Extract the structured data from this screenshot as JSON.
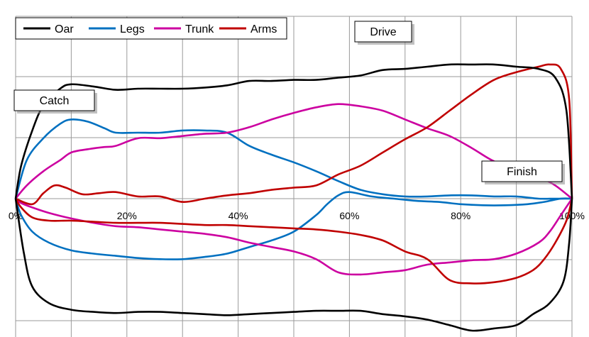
{
  "chart_data": {
    "type": "line",
    "xlim": [
      0,
      100
    ],
    "ylim": [
      -1,
      1
    ],
    "grid": true,
    "legend_position": "top-left",
    "x_tick_labels": [
      "0%",
      "20%",
      "40%",
      "60%",
      "80%",
      "100%"
    ],
    "x_tick_values": [
      0,
      20,
      40,
      60,
      80,
      100
    ],
    "annotations": [
      {
        "text": "Catch",
        "x": 0,
        "y": 0.79
      },
      {
        "text": "Drive",
        "x": 40,
        "y": 1.05
      },
      {
        "text": "Finish",
        "x": 100,
        "y": 0.3
      }
    ],
    "series": [
      {
        "name": "Oar",
        "color": "#000000",
        "drive": [
          [
            0,
            0
          ],
          [
            1,
            0.3
          ],
          [
            3,
            0.62
          ],
          [
            5,
            0.85
          ],
          [
            8,
            1.0
          ],
          [
            10,
            1.04
          ],
          [
            14,
            1.02
          ],
          [
            18,
            0.99
          ],
          [
            22,
            1.0
          ],
          [
            26,
            1.0
          ],
          [
            30,
            1.0
          ],
          [
            34,
            1.01
          ],
          [
            38,
            1.03
          ],
          [
            42,
            1.07
          ],
          [
            46,
            1.07
          ],
          [
            50,
            1.08
          ],
          [
            54,
            1.08
          ],
          [
            58,
            1.1
          ],
          [
            62,
            1.12
          ],
          [
            66,
            1.17
          ],
          [
            70,
            1.18
          ],
          [
            74,
            1.2
          ],
          [
            78,
            1.22
          ],
          [
            82,
            1.22
          ],
          [
            86,
            1.22
          ],
          [
            90,
            1.2
          ],
          [
            94,
            1.18
          ],
          [
            97,
            1.1
          ],
          [
            99,
            0.8
          ],
          [
            100,
            0
          ]
        ],
        "recovery": [
          [
            100,
            0
          ],
          [
            99.5,
            -0.4
          ],
          [
            98.5,
            -0.75
          ],
          [
            96,
            -0.95
          ],
          [
            93,
            -1.05
          ],
          [
            90,
            -1.15
          ],
          [
            86,
            -1.18
          ],
          [
            82,
            -1.2
          ],
          [
            78,
            -1.15
          ],
          [
            74,
            -1.1
          ],
          [
            70,
            -1.07
          ],
          [
            66,
            -1.05
          ],
          [
            62,
            -1.02
          ],
          [
            58,
            -1.02
          ],
          [
            54,
            -1.02
          ],
          [
            50,
            -1.03
          ],
          [
            46,
            -1.04
          ],
          [
            42,
            -1.05
          ],
          [
            38,
            -1.06
          ],
          [
            34,
            -1.05
          ],
          [
            30,
            -1.04
          ],
          [
            26,
            -1.03
          ],
          [
            22,
            -1.03
          ],
          [
            18,
            -1.04
          ],
          [
            14,
            -1.03
          ],
          [
            10,
            -1.01
          ],
          [
            6,
            -0.95
          ],
          [
            3,
            -0.8
          ],
          [
            1.5,
            -0.5
          ],
          [
            0,
            0
          ]
        ]
      },
      {
        "name": "Legs",
        "color": "#0070C0",
        "drive": [
          [
            0,
            0
          ],
          [
            2,
            0.35
          ],
          [
            5,
            0.55
          ],
          [
            8,
            0.68
          ],
          [
            10,
            0.72
          ],
          [
            13,
            0.7
          ],
          [
            16,
            0.64
          ],
          [
            18,
            0.6
          ],
          [
            22,
            0.6
          ],
          [
            26,
            0.6
          ],
          [
            30,
            0.62
          ],
          [
            34,
            0.62
          ],
          [
            38,
            0.6
          ],
          [
            42,
            0.48
          ],
          [
            46,
            0.4
          ],
          [
            50,
            0.33
          ],
          [
            54,
            0.25
          ],
          [
            58,
            0.16
          ],
          [
            62,
            0.08
          ],
          [
            66,
            0.04
          ],
          [
            70,
            0.02
          ],
          [
            74,
            0.02
          ],
          [
            78,
            0.03
          ],
          [
            82,
            0.03
          ],
          [
            86,
            0.02
          ],
          [
            90,
            0.02
          ],
          [
            94,
            0.0
          ],
          [
            97,
            0.0
          ],
          [
            100,
            0.0
          ]
        ],
        "recovery": [
          [
            100,
            0
          ],
          [
            98,
            0.0
          ],
          [
            95,
            -0.03
          ],
          [
            92,
            -0.05
          ],
          [
            88,
            -0.06
          ],
          [
            84,
            -0.06
          ],
          [
            80,
            -0.05
          ],
          [
            76,
            -0.03
          ],
          [
            72,
            -0.02
          ],
          [
            68,
            0.0
          ],
          [
            64,
            0.02
          ],
          [
            60,
            0.06
          ],
          [
            58,
            0.03
          ],
          [
            56,
            -0.05
          ],
          [
            54,
            -0.15
          ],
          [
            50,
            -0.3
          ],
          [
            46,
            -0.38
          ],
          [
            42,
            -0.44
          ],
          [
            38,
            -0.5
          ],
          [
            34,
            -0.53
          ],
          [
            30,
            -0.55
          ],
          [
            26,
            -0.55
          ],
          [
            22,
            -0.54
          ],
          [
            18,
            -0.52
          ],
          [
            14,
            -0.5
          ],
          [
            10,
            -0.47
          ],
          [
            6,
            -0.4
          ],
          [
            3,
            -0.3
          ],
          [
            1,
            -0.15
          ],
          [
            0,
            0
          ]
        ]
      },
      {
        "name": "Trunk",
        "color": "#CC00A0",
        "drive": [
          [
            0,
            0
          ],
          [
            2,
            0.12
          ],
          [
            5,
            0.25
          ],
          [
            8,
            0.35
          ],
          [
            10,
            0.42
          ],
          [
            13,
            0.45
          ],
          [
            16,
            0.47
          ],
          [
            18,
            0.48
          ],
          [
            22,
            0.55
          ],
          [
            26,
            0.55
          ],
          [
            30,
            0.57
          ],
          [
            34,
            0.59
          ],
          [
            38,
            0.6
          ],
          [
            42,
            0.65
          ],
          [
            46,
            0.72
          ],
          [
            50,
            0.78
          ],
          [
            54,
            0.83
          ],
          [
            58,
            0.86
          ],
          [
            62,
            0.84
          ],
          [
            66,
            0.8
          ],
          [
            70,
            0.72
          ],
          [
            74,
            0.64
          ],
          [
            78,
            0.57
          ],
          [
            82,
            0.46
          ],
          [
            86,
            0.34
          ],
          [
            90,
            0.28
          ],
          [
            94,
            0.2
          ],
          [
            97,
            0.12
          ],
          [
            100,
            0
          ]
        ],
        "recovery": [
          [
            100,
            0
          ],
          [
            98,
            -0.15
          ],
          [
            96,
            -0.3
          ],
          [
            94,
            -0.4
          ],
          [
            90,
            -0.5
          ],
          [
            86,
            -0.55
          ],
          [
            82,
            -0.56
          ],
          [
            78,
            -0.58
          ],
          [
            74,
            -0.6
          ],
          [
            70,
            -0.65
          ],
          [
            66,
            -0.67
          ],
          [
            62,
            -0.69
          ],
          [
            58,
            -0.67
          ],
          [
            54,
            -0.55
          ],
          [
            50,
            -0.48
          ],
          [
            46,
            -0.44
          ],
          [
            42,
            -0.4
          ],
          [
            38,
            -0.35
          ],
          [
            34,
            -0.32
          ],
          [
            30,
            -0.3
          ],
          [
            26,
            -0.28
          ],
          [
            22,
            -0.26
          ],
          [
            18,
            -0.25
          ],
          [
            14,
            -0.22
          ],
          [
            10,
            -0.18
          ],
          [
            6,
            -0.13
          ],
          [
            3,
            -0.08
          ],
          [
            1,
            -0.04
          ],
          [
            0,
            0
          ]
        ]
      },
      {
        "name": "Arms",
        "color": "#C00000",
        "drive": [
          [
            0,
            0
          ],
          [
            3,
            -0.05
          ],
          [
            5,
            0.05
          ],
          [
            7,
            0.12
          ],
          [
            9,
            0.1
          ],
          [
            12,
            0.04
          ],
          [
            15,
            0.05
          ],
          [
            18,
            0.06
          ],
          [
            22,
            0.02
          ],
          [
            26,
            0.02
          ],
          [
            30,
            -0.03
          ],
          [
            34,
            0.0
          ],
          [
            38,
            0.03
          ],
          [
            42,
            0.05
          ],
          [
            46,
            0.08
          ],
          [
            50,
            0.1
          ],
          [
            54,
            0.12
          ],
          [
            58,
            0.22
          ],
          [
            62,
            0.3
          ],
          [
            66,
            0.42
          ],
          [
            70,
            0.54
          ],
          [
            74,
            0.65
          ],
          [
            78,
            0.8
          ],
          [
            82,
            0.95
          ],
          [
            86,
            1.08
          ],
          [
            90,
            1.15
          ],
          [
            94,
            1.2
          ],
          [
            96,
            1.22
          ],
          [
            98,
            1.18
          ],
          [
            99.5,
            0.9
          ],
          [
            100,
            0
          ]
        ],
        "recovery": [
          [
            100,
            0
          ],
          [
            99,
            -0.2
          ],
          [
            97,
            -0.4
          ],
          [
            95,
            -0.55
          ],
          [
            93,
            -0.65
          ],
          [
            90,
            -0.72
          ],
          [
            86,
            -0.76
          ],
          [
            82,
            -0.77
          ],
          [
            78,
            -0.74
          ],
          [
            74,
            -0.55
          ],
          [
            70,
            -0.48
          ],
          [
            66,
            -0.38
          ],
          [
            62,
            -0.33
          ],
          [
            58,
            -0.3
          ],
          [
            54,
            -0.28
          ],
          [
            50,
            -0.27
          ],
          [
            46,
            -0.26
          ],
          [
            42,
            -0.25
          ],
          [
            38,
            -0.24
          ],
          [
            34,
            -0.24
          ],
          [
            30,
            -0.23
          ],
          [
            26,
            -0.22
          ],
          [
            22,
            -0.22
          ],
          [
            18,
            -0.22
          ],
          [
            14,
            -0.21
          ],
          [
            10,
            -0.2
          ],
          [
            6,
            -0.2
          ],
          [
            3,
            -0.17
          ],
          [
            1,
            -0.08
          ],
          [
            0,
            0
          ]
        ]
      }
    ]
  }
}
